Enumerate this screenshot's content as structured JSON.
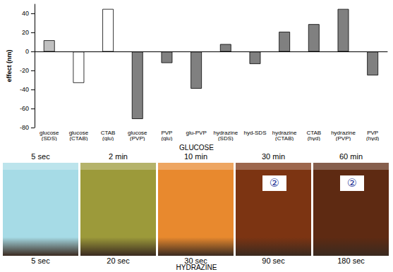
{
  "chart_data": {
    "type": "bar",
    "y_label": "effect (nm)",
    "categories": [
      "glucose (SDS)",
      "glucose (CTAB)",
      "CTAB (glu)",
      "glucose (PVP)",
      "PVP (glu)",
      "glu-PVP",
      "hydrazine (SDS)",
      "hyd-SDS",
      "hydrazine (CTAB)",
      "CTAB (hyd)",
      "hydrazine (PVP)",
      "PVP (hyd)"
    ],
    "values": [
      12,
      -33,
      45,
      -71,
      -12,
      -39,
      8,
      -13,
      21,
      29,
      45,
      -25
    ],
    "colors": [
      "#c0c0c0",
      "#ffffff",
      "#ffffff",
      "#808080",
      "#808080",
      "#808080",
      "#808080",
      "#808080",
      "#808080",
      "#808080",
      "#808080",
      "#808080"
    ],
    "ylim": [
      -80,
      50
    ],
    "yticks": [
      -80,
      -60,
      -40,
      -20,
      0,
      20,
      40
    ],
    "grid": false
  },
  "photo": {
    "top_title": "GLUCOSE",
    "bottom_title": "HYDRAZINE",
    "top_times": [
      "5 sec",
      "2 min",
      "10 min",
      "30 min",
      "60 min"
    ],
    "bottom_times": [
      "5 sec",
      "20 sec",
      "30 sec",
      "90 sec",
      "180 sec"
    ],
    "panel_colors": [
      "#a6dbe6",
      "#9c9a3a",
      "#e8892e",
      "#7c3412",
      "#5e2a12"
    ],
    "stickers": [
      null,
      null,
      null,
      "②",
      "②"
    ]
  }
}
